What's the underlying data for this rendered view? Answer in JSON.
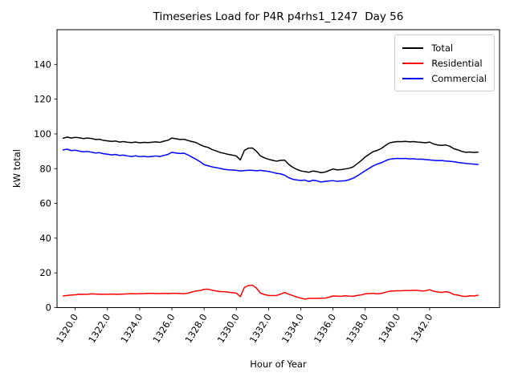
{
  "colors": {
    "background": "#ffffff",
    "axes": "#000000",
    "legend_border": "#cccccc",
    "total": "#000000",
    "residential": "#ff0000",
    "commercial": "#0000ff"
  },
  "chart_data": {
    "type": "line",
    "title": "Timeseries Load for P4R p4rhs1_1247  Day 56",
    "xlabel": "Hour of Year",
    "ylabel": "kW total",
    "xlim": [
      1318.87,
      1346.34
    ],
    "ylim": [
      0,
      160
    ],
    "grid": false,
    "legend_position": "upper-right",
    "xticks": [
      1320,
      1322,
      1324,
      1326,
      1328,
      1330,
      1332,
      1334,
      1336,
      1338,
      1340,
      1342
    ],
    "xtick_labels": [
      "1320.0",
      "1322.0",
      "1324.0",
      "1326.0",
      "1328.0",
      "1330.0",
      "1332.0",
      "1334.0",
      "1336.0",
      "1338.0",
      "1340.0",
      "1342.0"
    ],
    "xtick_rotation_deg": 58,
    "yticks": [
      0,
      20,
      40,
      60,
      80,
      100,
      120,
      140
    ],
    "ytick_labels": [
      "0",
      "20",
      "40",
      "60",
      "80",
      "100",
      "120",
      "140"
    ],
    "x": [
      1319.25,
      1319.5,
      1319.75,
      1320,
      1320.25,
      1320.5,
      1320.75,
      1321,
      1321.25,
      1321.5,
      1321.75,
      1322,
      1322.25,
      1322.5,
      1322.75,
      1323,
      1323.25,
      1323.5,
      1323.75,
      1324,
      1324.25,
      1324.5,
      1324.75,
      1325,
      1325.25,
      1325.5,
      1325.75,
      1326,
      1326.25,
      1326.5,
      1326.75,
      1327,
      1327.25,
      1327.5,
      1327.75,
      1328,
      1328.25,
      1328.5,
      1328.75,
      1329,
      1329.25,
      1329.5,
      1329.75,
      1330,
      1330.25,
      1330.5,
      1330.75,
      1331,
      1331.25,
      1331.5,
      1331.75,
      1332,
      1332.25,
      1332.5,
      1332.75,
      1333,
      1333.25,
      1333.5,
      1333.75,
      1334,
      1334.25,
      1334.5,
      1334.75,
      1335,
      1335.25,
      1335.5,
      1335.75,
      1336,
      1336.25,
      1336.5,
      1336.75,
      1337,
      1337.25,
      1337.5,
      1337.75,
      1338,
      1338.25,
      1338.5,
      1338.75,
      1339,
      1339.25,
      1339.5,
      1339.75,
      1340,
      1340.25,
      1340.5,
      1340.75,
      1341,
      1341.25,
      1341.5,
      1341.75,
      1342,
      1342.25,
      1342.5,
      1342.75,
      1343,
      1343.25,
      1343.5,
      1343.75,
      1344,
      1344.25,
      1344.5,
      1344.75,
      1345
    ],
    "series": [
      {
        "name": "Total",
        "color": "#000000",
        "values": [
          97.5,
          98.2,
          97.6,
          98.0,
          97.8,
          97.3,
          97.6,
          97.4,
          96.8,
          96.9,
          96.3,
          96.0,
          95.7,
          95.9,
          95.3,
          95.6,
          95.2,
          95.0,
          95.3,
          94.9,
          95.1,
          95.0,
          95.2,
          95.4,
          95.1,
          95.8,
          96.3,
          97.6,
          97.2,
          96.8,
          96.9,
          96.2,
          95.6,
          95.0,
          93.8,
          92.8,
          92.2,
          91.0,
          90.2,
          89.3,
          88.8,
          88.2,
          87.8,
          87.3,
          85.0,
          90.5,
          91.8,
          91.9,
          90.0,
          87.3,
          86.2,
          85.4,
          84.8,
          84.3,
          84.8,
          84.9,
          82.5,
          80.8,
          79.6,
          78.7,
          78.3,
          77.9,
          78.6,
          78.3,
          77.7,
          78.0,
          78.9,
          79.8,
          79.3,
          79.4,
          79.8,
          80.2,
          81.0,
          82.8,
          84.6,
          86.7,
          88.3,
          89.8,
          90.5,
          91.6,
          93.3,
          94.8,
          95.3,
          95.6,
          95.5,
          95.7,
          95.4,
          95.6,
          95.3,
          95.1,
          94.9,
          95.3,
          94.2,
          93.6,
          93.4,
          93.6,
          92.9,
          91.5,
          90.8,
          89.9,
          89.4,
          89.6,
          89.3,
          89.5
        ]
      },
      {
        "name": "Residential",
        "color": "#ff0000",
        "values": [
          6.7,
          7.0,
          7.2,
          7.4,
          7.7,
          7.6,
          7.7,
          7.9,
          7.8,
          7.7,
          7.7,
          7.7,
          7.8,
          7.7,
          7.7,
          7.8,
          7.9,
          8.0,
          7.9,
          8.0,
          8.0,
          8.2,
          8.2,
          8.1,
          8.1,
          8.2,
          8.1,
          8.2,
          8.2,
          8.1,
          8.0,
          8.3,
          9.0,
          9.6,
          9.8,
          10.5,
          10.6,
          10.0,
          9.6,
          9.2,
          9.2,
          8.9,
          8.6,
          8.3,
          6.3,
          11.6,
          12.7,
          12.9,
          11.2,
          8.3,
          7.5,
          7.0,
          6.9,
          7.0,
          7.8,
          8.7,
          7.7,
          6.9,
          6.1,
          5.5,
          4.9,
          5.3,
          5.3,
          5.3,
          5.4,
          5.4,
          6.0,
          6.7,
          6.6,
          6.5,
          6.8,
          6.6,
          6.5,
          7.0,
          7.3,
          7.9,
          8.1,
          8.2,
          7.9,
          8.2,
          8.8,
          9.4,
          9.6,
          9.7,
          9.7,
          9.8,
          9.8,
          9.9,
          9.9,
          9.6,
          9.7,
          10.3,
          9.4,
          9.0,
          8.7,
          9.2,
          8.7,
          7.5,
          7.2,
          6.6,
          6.4,
          6.8,
          6.7,
          7.1
        ]
      },
      {
        "name": "Commercial",
        "color": "#0000ff",
        "values": [
          90.8,
          91.2,
          90.4,
          90.6,
          90.1,
          89.7,
          89.9,
          89.5,
          89.0,
          89.2,
          88.6,
          88.3,
          87.9,
          88.2,
          87.6,
          87.8,
          87.3,
          87.0,
          87.4,
          86.9,
          87.1,
          86.8,
          87.0,
          87.3,
          87.0,
          87.6,
          88.2,
          89.4,
          89.0,
          88.7,
          88.9,
          87.9,
          86.6,
          85.4,
          84.0,
          82.3,
          81.6,
          81.0,
          80.6,
          80.1,
          79.6,
          79.3,
          79.2,
          79.0,
          78.7,
          78.9,
          79.1,
          79.0,
          78.8,
          79.0,
          78.7,
          78.4,
          77.9,
          77.3,
          77.0,
          76.2,
          74.8,
          73.9,
          73.5,
          73.2,
          73.4,
          72.6,
          73.3,
          73.0,
          72.3,
          72.6,
          72.9,
          73.1,
          72.7,
          72.9,
          73.0,
          73.6,
          74.5,
          75.8,
          77.3,
          78.8,
          80.2,
          81.6,
          82.6,
          83.4,
          84.5,
          85.4,
          85.7,
          85.9,
          85.8,
          85.9,
          85.6,
          85.7,
          85.4,
          85.5,
          85.2,
          85.0,
          84.8,
          84.6,
          84.7,
          84.4,
          84.2,
          84.0,
          83.6,
          83.3,
          83.0,
          82.8,
          82.6,
          82.4
        ]
      }
    ]
  }
}
